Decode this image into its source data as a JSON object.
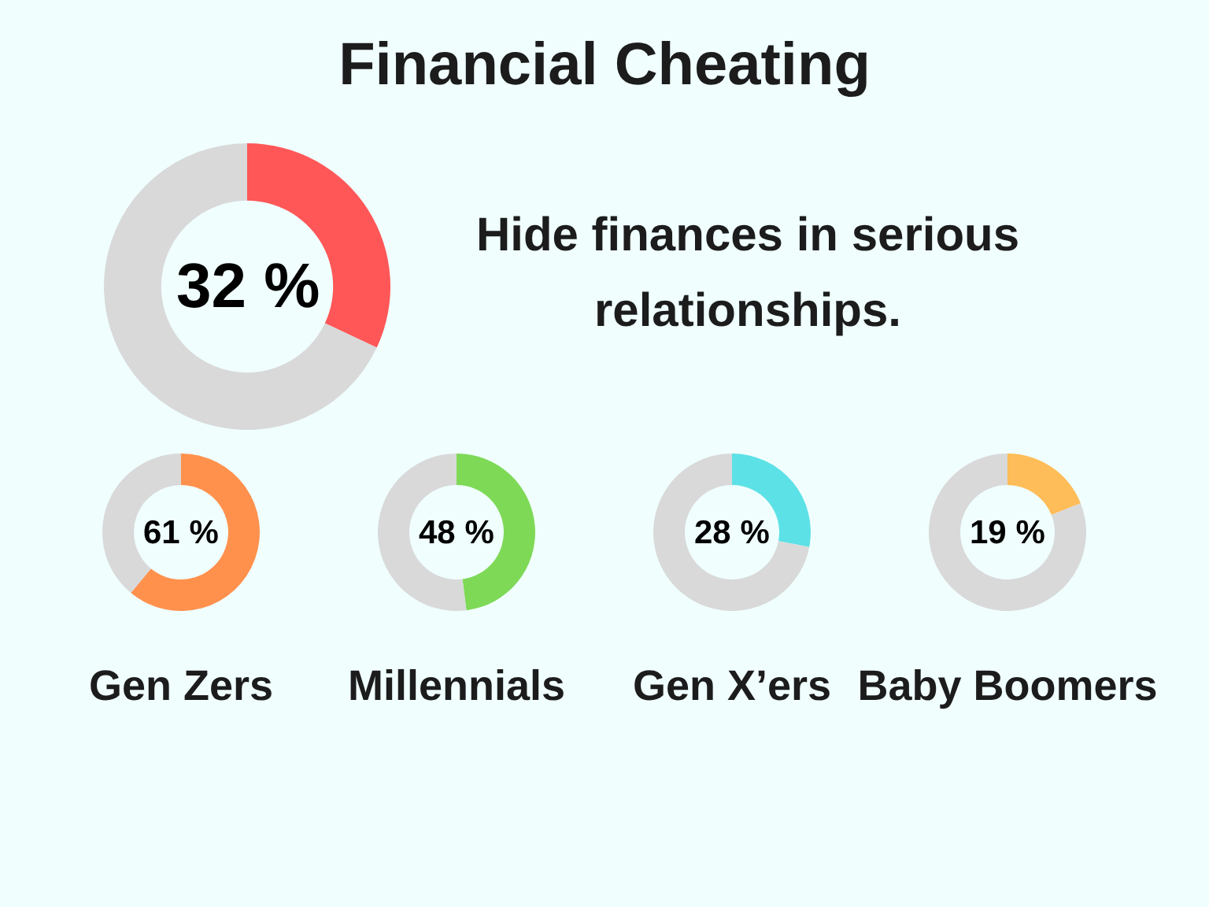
{
  "chart_data": [
    {
      "type": "donut",
      "title": "Financial Cheating",
      "subtitle": "Hide finances in serious relationships.",
      "categories": [
        null,
        null
      ],
      "values": [
        32,
        68
      ],
      "colors": [
        "#ff5757",
        "#d9d9d9"
      ],
      "annotations": [
        "32 %"
      ]
    },
    {
      "type": "donut",
      "title": "Gen Zers",
      "categories": [
        null,
        null
      ],
      "values": [
        61,
        39
      ],
      "colors": [
        "#ff914d",
        "#d9d9d9"
      ],
      "annotations": [
        "61 %"
      ]
    },
    {
      "type": "donut",
      "title": "Millennials",
      "categories": [
        null,
        null
      ],
      "values": [
        48,
        52
      ],
      "colors": [
        "#7ed957",
        "#d9d9d9"
      ],
      "annotations": [
        "48 %"
      ]
    },
    {
      "type": "donut",
      "title": "Gen X’ers",
      "categories": [
        null,
        null
      ],
      "values": [
        28,
        72
      ],
      "colors": [
        "#5ce1e6",
        "#d9d9d9"
      ],
      "annotations": [
        "28 %"
      ]
    },
    {
      "type": "donut",
      "title": "Baby Boomers",
      "categories": [
        null,
        null
      ],
      "values": [
        19,
        81
      ],
      "colors": [
        "#ffbd59",
        "#d9d9d9"
      ],
      "annotations": [
        "19 %"
      ]
    }
  ]
}
